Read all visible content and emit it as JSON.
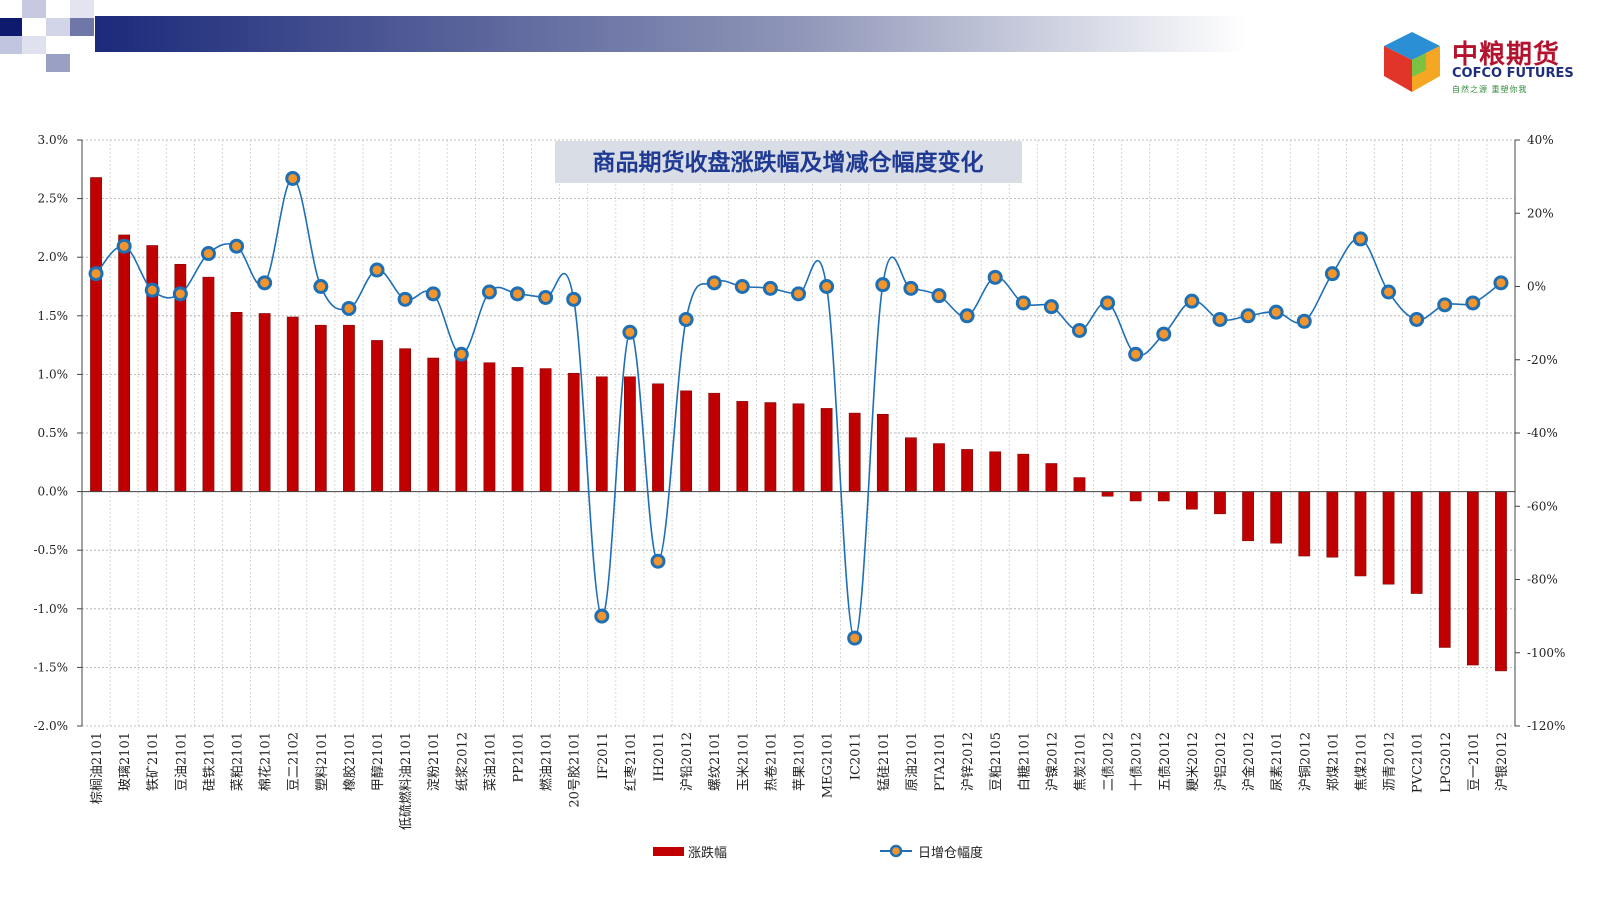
{
  "logo": {
    "name_cn": "中粮期货",
    "name_en": "COFCO FUTURES",
    "tagline": "自然之源  重塑你我"
  },
  "colors": {
    "bar": "#c00000",
    "bar_border": "#7a0000",
    "line": "#1f6fb5",
    "marker_fill": "#f2952c",
    "marker_edge": "#1f6fb5",
    "title_bg": "#d9dde6",
    "title_text": "#1f3a93",
    "header_dark": "#1b2a7a"
  },
  "chart_data": {
    "type": "bar",
    "title": "商品期货收盘涨跌幅及增减仓幅度变化",
    "categories": [
      "棕榈油2101",
      "玻璃2101",
      "铁矿2101",
      "豆油2101",
      "硅铁2101",
      "菜粕2101",
      "棉花2101",
      "豆二2102",
      "塑料2101",
      "橡胶2101",
      "甲醇2101",
      "低硫燃料油2101",
      "淀粉2101",
      "纸浆2012",
      "菜油2101",
      "PP2101",
      "燃油2101",
      "20号胶2101",
      "IF2011",
      "红枣2101",
      "IH2011",
      "沪铅2012",
      "螺纹2101",
      "玉米2101",
      "热卷2101",
      "苹果2101",
      "MEG2101",
      "IC2011",
      "锰硅2101",
      "原油2101",
      "PTA2101",
      "沪锌2012",
      "豆粕2105",
      "白糖2101",
      "沪镍2012",
      "焦炭2101",
      "二债2012",
      "十债2012",
      "五债2012",
      "粳米2012",
      "沪铝2012",
      "沪金2012",
      "尿素2101",
      "沪铜2012",
      "郑煤2101",
      "焦煤2101",
      "沥青2012",
      "PVC2101",
      "LPG2012",
      "豆一2101",
      "沪银2012"
    ],
    "series": [
      {
        "name": "涨跌幅",
        "type": "bar",
        "axis": "left",
        "values": [
          2.68,
          2.19,
          2.1,
          1.94,
          1.83,
          1.53,
          1.52,
          1.49,
          1.42,
          1.42,
          1.29,
          1.22,
          1.14,
          1.14,
          1.1,
          1.06,
          1.05,
          1.01,
          0.98,
          0.98,
          0.92,
          0.86,
          0.84,
          0.77,
          0.76,
          0.75,
          0.71,
          0.67,
          0.66,
          0.46,
          0.41,
          0.36,
          0.34,
          0.32,
          0.24,
          0.12,
          -0.04,
          -0.08,
          -0.08,
          -0.15,
          -0.19,
          -0.42,
          -0.44,
          -0.55,
          -0.56,
          -0.72,
          -0.79,
          -0.87,
          -1.33,
          -1.48,
          -1.53
        ]
      },
      {
        "name": "日增仓幅度",
        "type": "line",
        "axis": "right",
        "values": [
          3.5,
          11.0,
          -1.0,
          -2.0,
          9.0,
          11.0,
          1.0,
          29.5,
          0.0,
          -6.0,
          4.5,
          -3.5,
          -2.0,
          -18.5,
          -1.5,
          -2.0,
          -3.0,
          -3.5,
          -90.0,
          -12.5,
          -75.0,
          -9.0,
          1.0,
          0.0,
          -0.5,
          -2.0,
          0.0,
          -96.0,
          0.5,
          -0.5,
          -2.5,
          -8.0,
          2.5,
          -4.5,
          -5.5,
          -12.0,
          -4.5,
          -18.5,
          -13.0,
          -4.0,
          -9.0,
          -8.0,
          -7.0,
          -9.5,
          3.5,
          13.0,
          -1.5,
          -9.0,
          -5.0,
          -4.5,
          1.0
        ]
      }
    ],
    "left_axis": {
      "ylim": [
        -2.0,
        3.0
      ],
      "ticks": [
        "-2.0%",
        "-1.5%",
        "-1.0%",
        "-0.5%",
        "0.0%",
        "0.5%",
        "1.0%",
        "1.5%",
        "2.0%",
        "2.5%",
        "3.0%"
      ]
    },
    "right_axis": {
      "ylim": [
        -120,
        40
      ],
      "ticks": [
        "-120%",
        "-100%",
        "-80%",
        "-60%",
        "-40%",
        "-20%",
        "0%",
        "20%",
        "40%"
      ]
    },
    "grid": true,
    "legend_placement": "bottom",
    "legend": [
      "涨跌幅",
      "日增仓幅度"
    ]
  }
}
